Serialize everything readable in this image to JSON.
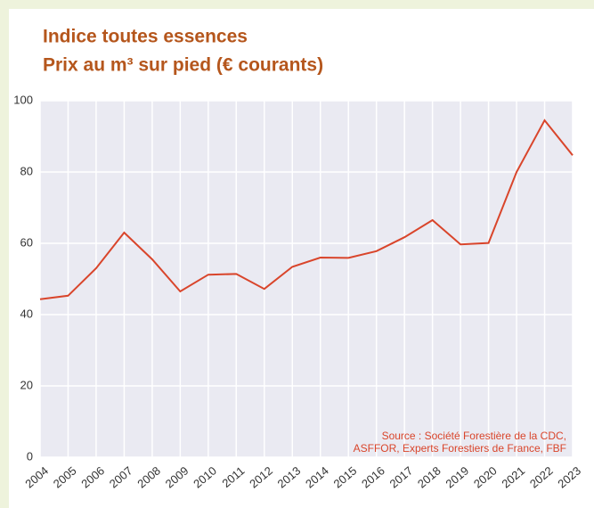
{
  "chart_data": {
    "type": "line",
    "title": "Indice toutes essences",
    "subtitle": "Prix au m³ sur pied (€ courants)",
    "annotation": [
      "Source : Société Forestière de la CDC,",
      "ASFFOR, Experts Forestiers de France, FBF"
    ],
    "categories": [
      "2004",
      "2005",
      "2006",
      "2007",
      "2008",
      "2009",
      "2010",
      "2011",
      "2012",
      "2013",
      "2014",
      "2015",
      "2016",
      "2017",
      "2018",
      "2019",
      "2020",
      "2021",
      "2022",
      "2023"
    ],
    "series": [
      {
        "name": "Indice toutes essences",
        "color": "#d9452b",
        "values": [
          44.3,
          45.3,
          53,
          63,
          55.5,
          46.5,
          51.2,
          51.4,
          47.2,
          53.4,
          56,
          55.9,
          57.8,
          61.7,
          66.5,
          59.7,
          60.1,
          80,
          94.5,
          84.7
        ]
      }
    ],
    "ylim": [
      0,
      100
    ],
    "yticks": [
      0,
      20,
      40,
      60,
      80,
      100
    ],
    "grid": true
  }
}
